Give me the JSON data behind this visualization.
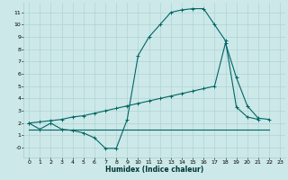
{
  "xlabel": "Humidex (Indice chaleur)",
  "bg_color": "#cce8e8",
  "grid_color": "#aacfcf",
  "line_color": "#006666",
  "xlim": [
    -0.5,
    23.5
  ],
  "ylim": [
    -0.8,
    11.8
  ],
  "xticks": [
    0,
    1,
    2,
    3,
    4,
    5,
    6,
    7,
    8,
    9,
    10,
    11,
    12,
    13,
    14,
    15,
    16,
    17,
    18,
    19,
    20,
    21,
    22,
    23
  ],
  "yticks": [
    0,
    1,
    2,
    3,
    4,
    5,
    6,
    7,
    8,
    9,
    10,
    11
  ],
  "ytick_labels": [
    "-0",
    "1",
    "2",
    "3",
    "4",
    "5",
    "6",
    "7",
    "8",
    "9",
    "10",
    "11"
  ],
  "line1_x": [
    0,
    1,
    2,
    3,
    4,
    5,
    6,
    7,
    8,
    9,
    10,
    11,
    12,
    13,
    14,
    15,
    16,
    17,
    18,
    19,
    20,
    21
  ],
  "line1_y": [
    2.0,
    1.5,
    2.0,
    1.5,
    1.4,
    1.2,
    0.8,
    -0.05,
    -0.05,
    2.3,
    7.5,
    9.0,
    10.0,
    11.0,
    11.2,
    11.3,
    11.3,
    10.0,
    8.7,
    3.3,
    2.5,
    2.3
  ],
  "line2_x": [
    0,
    1,
    2,
    3,
    4,
    5,
    6,
    7,
    8,
    9,
    10,
    11,
    12,
    13,
    14,
    15,
    16,
    17,
    18,
    19,
    20,
    21,
    22
  ],
  "line2_y": [
    2.0,
    2.1,
    2.2,
    2.3,
    2.5,
    2.6,
    2.8,
    3.0,
    3.2,
    3.4,
    3.6,
    3.8,
    4.0,
    4.2,
    4.4,
    4.6,
    4.8,
    5.0,
    8.5,
    5.7,
    3.4,
    2.4,
    2.3
  ],
  "line3_x": [
    0,
    22
  ],
  "line3_y": [
    1.5,
    1.5
  ]
}
